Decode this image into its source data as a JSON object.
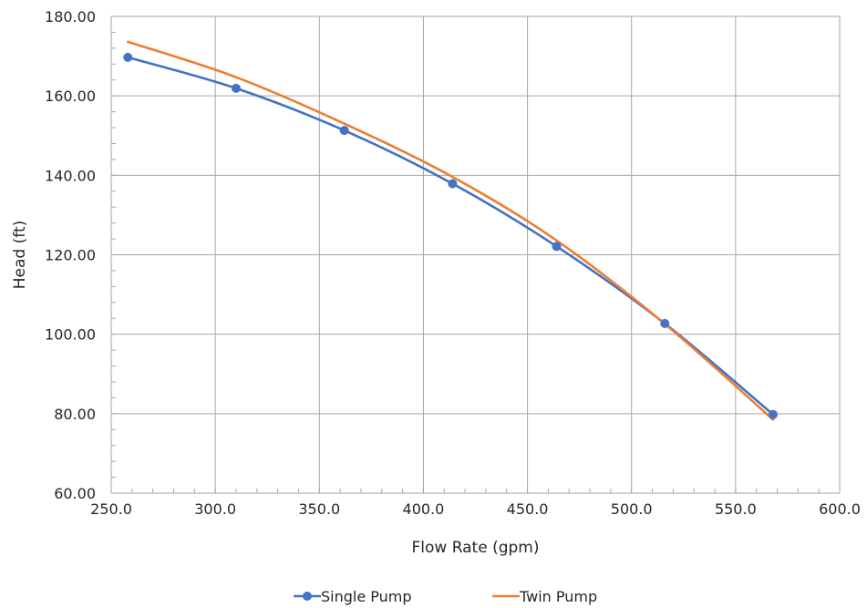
{
  "chart_data": {
    "type": "scatter",
    "title": "",
    "xlabel": "Flow Rate (gpm)",
    "ylabel": "Head (ft)",
    "xlim": [
      250,
      600
    ],
    "ylim": [
      60,
      180
    ],
    "xticks": [
      250,
      300,
      350,
      400,
      450,
      500,
      550,
      600
    ],
    "yticks": [
      60,
      80,
      100,
      120,
      140,
      160,
      180
    ],
    "xtick_labels": [
      "250.0",
      "300.0",
      "350.0",
      "400.0",
      "450.0",
      "500.0",
      "550.0",
      "600.0"
    ],
    "ytick_labels": [
      "60.00",
      "80.00",
      "100.00",
      "120.00",
      "140.00",
      "160.00",
      "180.00"
    ],
    "grid": true,
    "smooth_lines": true,
    "legend_position": "bottom",
    "series": [
      {
        "name": "Single Pump",
        "color": "#4472C4",
        "markers": true,
        "x": [
          258,
          310,
          362,
          414,
          464,
          516,
          568
        ],
        "y": [
          169.7,
          161.9,
          151.3,
          137.9,
          122.1,
          102.7,
          79.8
        ]
      },
      {
        "name": "Twin Pump",
        "color": "#ED7D31",
        "markers": false,
        "x": [
          258,
          310,
          362,
          414,
          464,
          516,
          568
        ],
        "y": [
          173.6,
          164.7,
          153.0,
          139.6,
          123.6,
          102.6,
          78.5
        ]
      }
    ]
  }
}
